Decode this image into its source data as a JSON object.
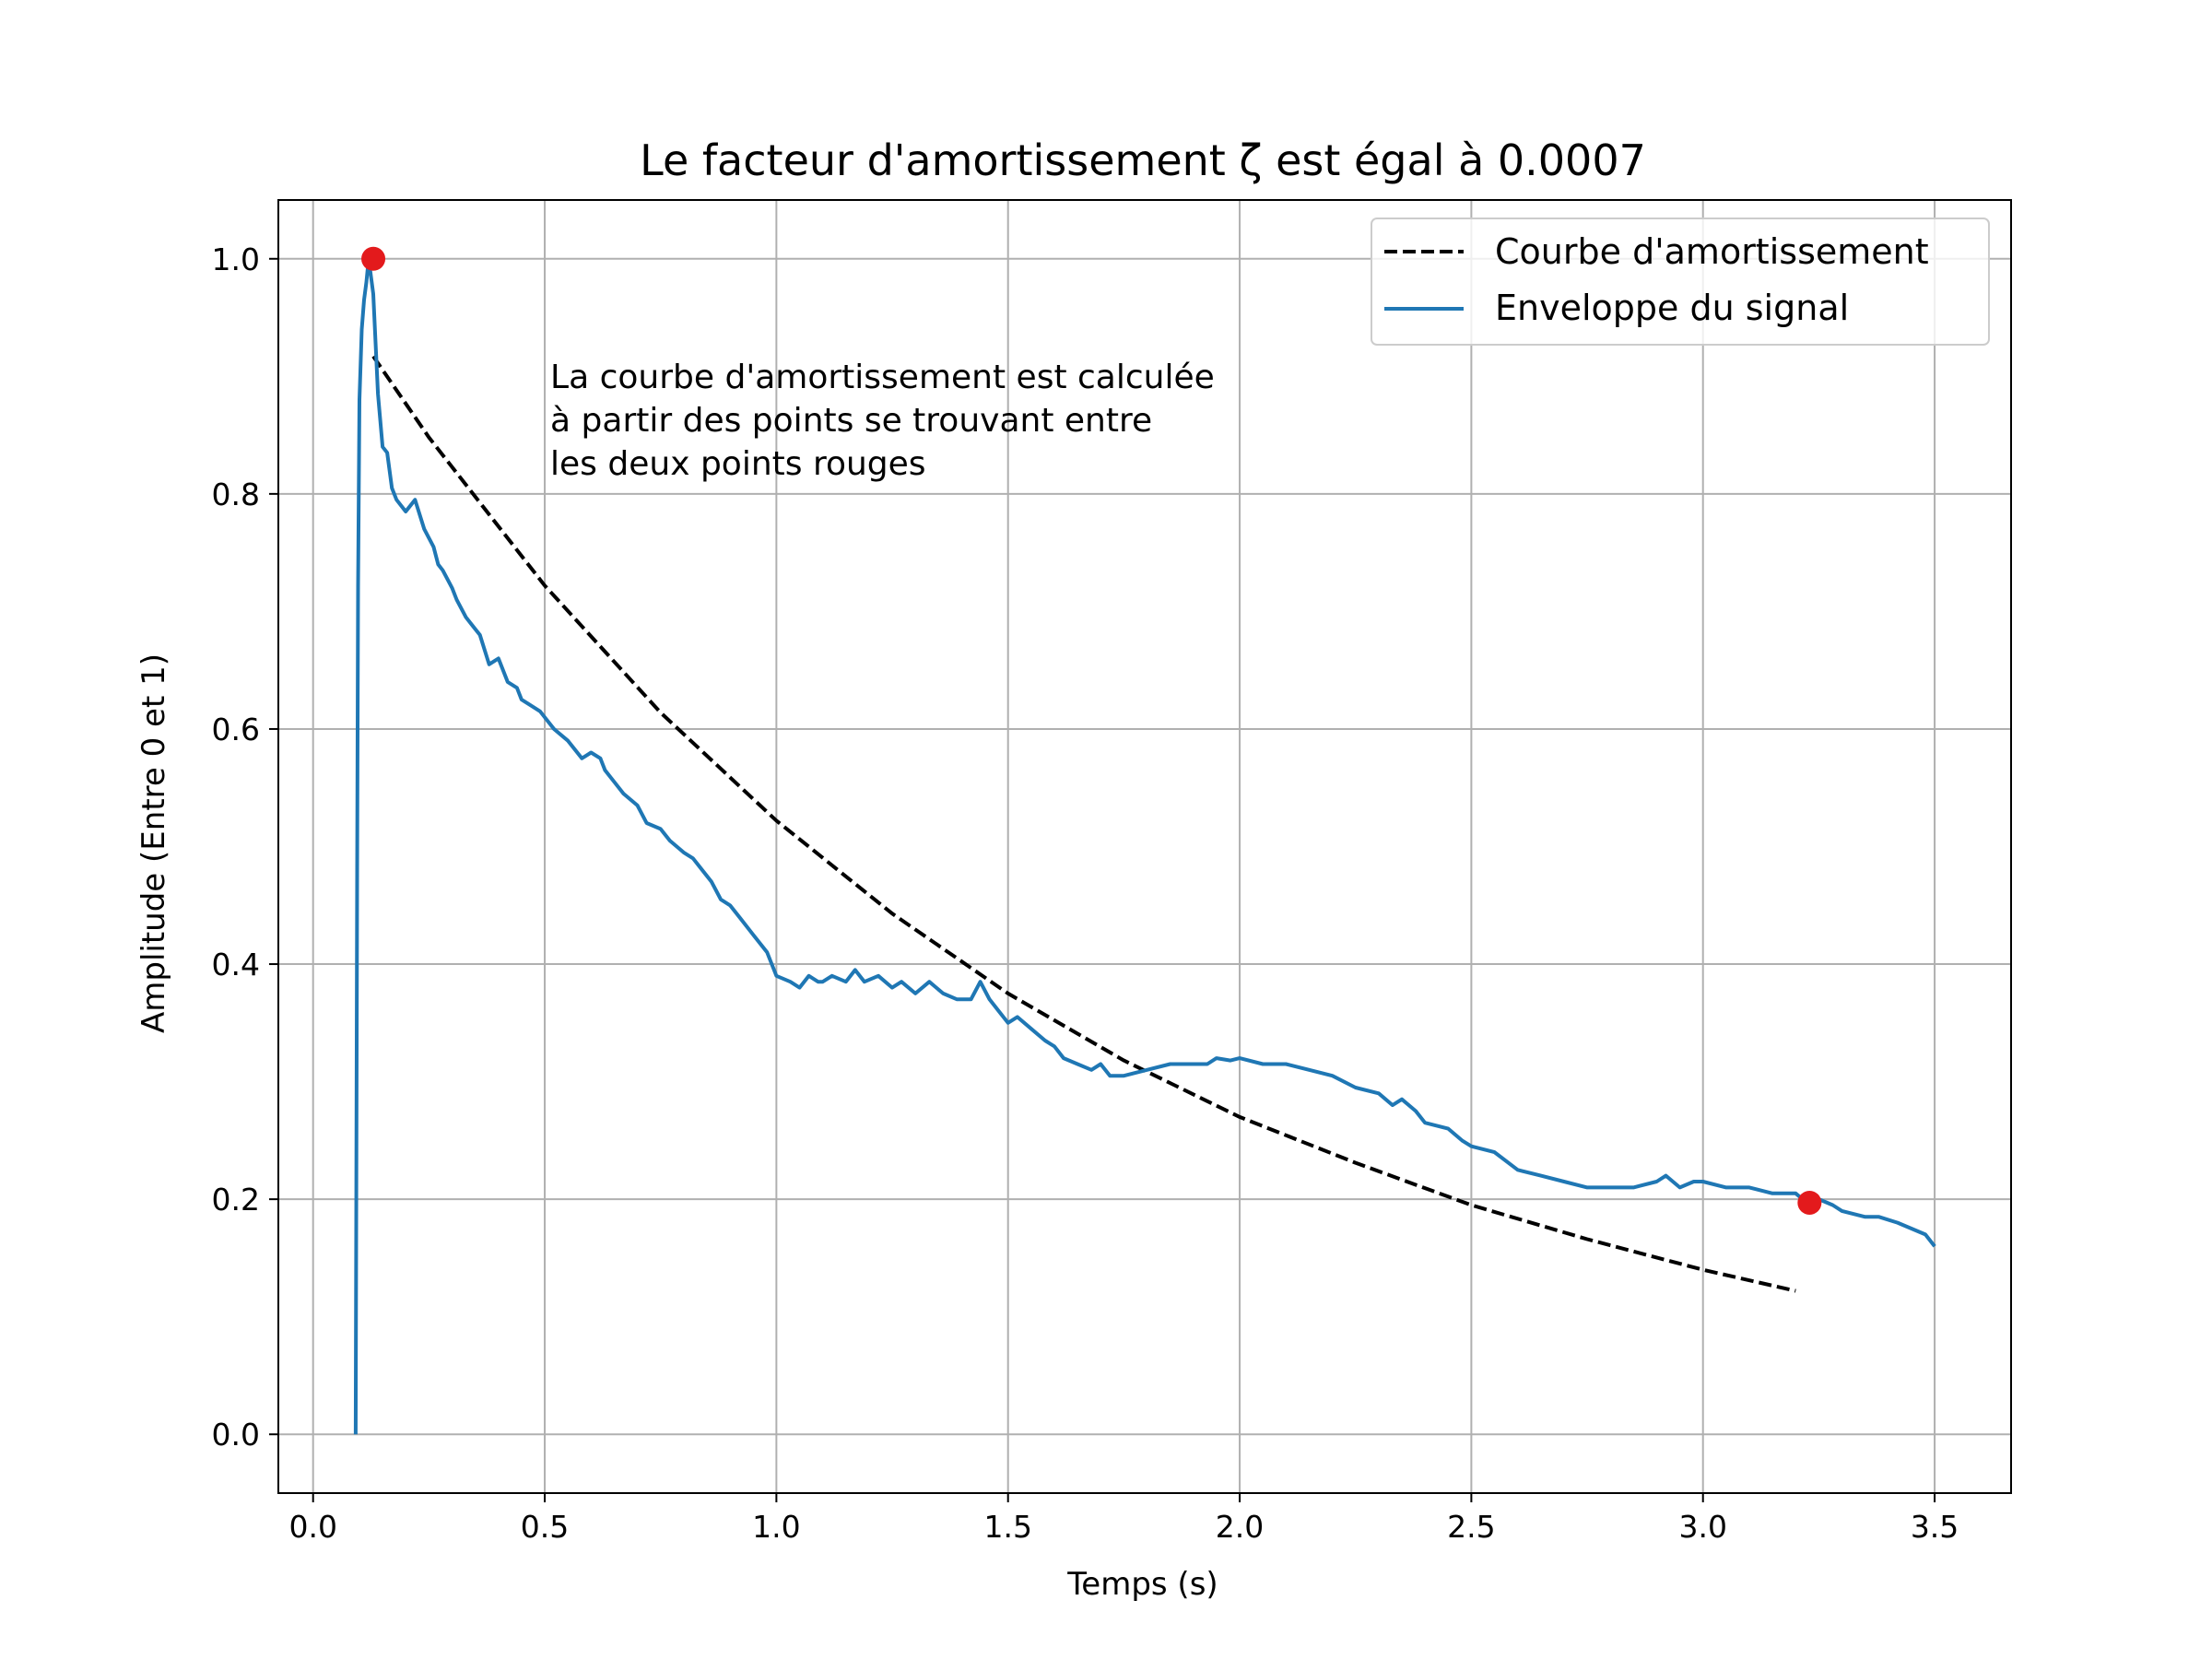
{
  "chart_data": {
    "type": "line",
    "title": "Le facteur d'amortissement ζ est égal à 0.0007",
    "xlabel": "Temps (s)",
    "ylabel": "Amplitude (Entre 0 et 1)",
    "xlim": [
      -0.075,
      3.665
    ],
    "ylim": [
      -0.05,
      1.05
    ],
    "xticks": [
      0.0,
      0.5,
      1.0,
      1.5,
      2.0,
      2.5,
      3.0,
      3.5
    ],
    "xtick_labels": [
      "0.0",
      "0.5",
      "1.0",
      "1.5",
      "2.0",
      "2.5",
      "3.0",
      "3.5"
    ],
    "yticks": [
      0.0,
      0.2,
      0.4,
      0.6,
      0.8,
      1.0
    ],
    "ytick_labels": [
      "0.0",
      "0.2",
      "0.4",
      "0.6",
      "0.8",
      "1.0"
    ],
    "grid": true,
    "legend_position": "top-right",
    "annotation": {
      "x": 0.5,
      "y": 0.89,
      "lines": [
        "La courbe d'amortissement est calculée",
        "à partir des points se trouvant entre",
        "les deux points rouges"
      ]
    },
    "series": [
      {
        "name": "Courbe d'amortissement",
        "style": "dashed",
        "color": "#000000",
        "x": [
          0.13,
          0.25,
          0.5,
          0.75,
          1.0,
          1.25,
          1.5,
          1.75,
          2.0,
          2.25,
          2.5,
          2.75,
          3.0,
          3.2
        ],
        "y": [
          0.917,
          0.848,
          0.722,
          0.614,
          0.522,
          0.443,
          0.375,
          0.318,
          0.27,
          0.231,
          0.195,
          0.166,
          0.14,
          0.122
        ]
      },
      {
        "name": "Enveloppe du signal",
        "style": "solid",
        "color": "#1f77b4",
        "x": [
          0.092,
          0.095,
          0.097,
          0.1,
          0.105,
          0.11,
          0.115,
          0.12,
          0.13,
          0.14,
          0.15,
          0.16,
          0.17,
          0.18,
          0.2,
          0.22,
          0.24,
          0.26,
          0.27,
          0.28,
          0.3,
          0.31,
          0.33,
          0.35,
          0.36,
          0.38,
          0.4,
          0.42,
          0.44,
          0.45,
          0.47,
          0.49,
          0.5,
          0.52,
          0.55,
          0.58,
          0.6,
          0.62,
          0.63,
          0.65,
          0.67,
          0.7,
          0.72,
          0.75,
          0.77,
          0.8,
          0.82,
          0.84,
          0.86,
          0.88,
          0.9,
          0.92,
          0.95,
          0.98,
          1.0,
          1.03,
          1.05,
          1.07,
          1.09,
          1.1,
          1.12,
          1.15,
          1.17,
          1.19,
          1.22,
          1.25,
          1.27,
          1.3,
          1.33,
          1.36,
          1.39,
          1.42,
          1.44,
          1.46,
          1.48,
          1.5,
          1.52,
          1.55,
          1.58,
          1.6,
          1.62,
          1.65,
          1.68,
          1.7,
          1.72,
          1.75,
          1.8,
          1.85,
          1.9,
          1.93,
          1.95,
          1.98,
          2.0,
          2.05,
          2.1,
          2.15,
          2.2,
          2.25,
          2.3,
          2.33,
          2.35,
          2.38,
          2.4,
          2.45,
          2.48,
          2.5,
          2.55,
          2.6,
          2.65,
          2.7,
          2.75,
          2.8,
          2.85,
          2.9,
          2.92,
          2.95,
          2.98,
          3.0,
          3.05,
          3.1,
          3.15,
          3.18,
          3.2,
          3.23,
          3.25,
          3.28,
          3.3,
          3.35,
          3.38,
          3.42,
          3.45,
          3.48,
          3.5
        ],
        "y": [
          0.0,
          0.48,
          0.72,
          0.88,
          0.94,
          0.965,
          0.98,
          1.0,
          0.97,
          0.885,
          0.84,
          0.835,
          0.805,
          0.795,
          0.785,
          0.795,
          0.77,
          0.755,
          0.74,
          0.735,
          0.72,
          0.71,
          0.695,
          0.685,
          0.68,
          0.655,
          0.66,
          0.64,
          0.635,
          0.625,
          0.62,
          0.615,
          0.61,
          0.6,
          0.59,
          0.575,
          0.58,
          0.575,
          0.565,
          0.555,
          0.545,
          0.535,
          0.52,
          0.515,
          0.505,
          0.495,
          0.49,
          0.48,
          0.47,
          0.455,
          0.45,
          0.44,
          0.425,
          0.41,
          0.39,
          0.385,
          0.38,
          0.39,
          0.385,
          0.385,
          0.39,
          0.385,
          0.395,
          0.385,
          0.39,
          0.38,
          0.385,
          0.375,
          0.385,
          0.375,
          0.37,
          0.37,
          0.385,
          0.37,
          0.36,
          0.35,
          0.355,
          0.345,
          0.335,
          0.33,
          0.32,
          0.315,
          0.31,
          0.315,
          0.305,
          0.305,
          0.31,
          0.315,
          0.315,
          0.315,
          0.32,
          0.318,
          0.32,
          0.315,
          0.315,
          0.31,
          0.305,
          0.295,
          0.29,
          0.28,
          0.285,
          0.275,
          0.265,
          0.26,
          0.25,
          0.245,
          0.24,
          0.225,
          0.22,
          0.215,
          0.21,
          0.21,
          0.21,
          0.215,
          0.22,
          0.21,
          0.215,
          0.215,
          0.21,
          0.21,
          0.205,
          0.205,
          0.205,
          0.195,
          0.2,
          0.195,
          0.19,
          0.185,
          0.185,
          0.18,
          0.175,
          0.17,
          0.16
        ]
      }
    ],
    "marked_points": {
      "color": "#e31a1c",
      "x": [
        0.13,
        3.23
      ],
      "y": [
        1.0,
        0.197
      ]
    }
  }
}
